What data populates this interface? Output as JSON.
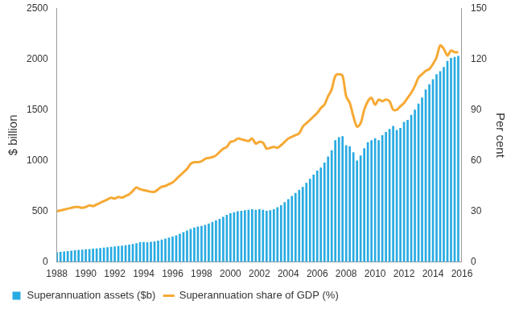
{
  "chart_data": {
    "type": "bar",
    "x": [
      1988,
      1988.25,
      1988.5,
      1988.75,
      1989,
      1989.25,
      1989.5,
      1989.75,
      1990,
      1990.25,
      1990.5,
      1990.75,
      1991,
      1991.25,
      1991.5,
      1991.75,
      1992,
      1992.25,
      1992.5,
      1992.75,
      1993,
      1993.25,
      1993.5,
      1993.75,
      1994,
      1994.25,
      1994.5,
      1994.75,
      1995,
      1995.25,
      1995.5,
      1995.75,
      1996,
      1996.25,
      1996.5,
      1996.75,
      1997,
      1997.25,
      1997.5,
      1997.75,
      1998,
      1998.25,
      1998.5,
      1998.75,
      1999,
      1999.25,
      1999.5,
      1999.75,
      2000,
      2000.25,
      2000.5,
      2000.75,
      2001,
      2001.25,
      2001.5,
      2001.75,
      2002,
      2002.25,
      2002.5,
      2002.75,
      2003,
      2003.25,
      2003.5,
      2003.75,
      2004,
      2004.25,
      2004.5,
      2004.75,
      2005,
      2005.25,
      2005.5,
      2005.75,
      2006,
      2006.25,
      2006.5,
      2006.75,
      2007,
      2007.25,
      2007.5,
      2007.75,
      2008,
      2008.25,
      2008.5,
      2008.75,
      2009,
      2009.25,
      2009.5,
      2009.75,
      2010,
      2010.25,
      2010.5,
      2010.75,
      2011,
      2011.25,
      2011.5,
      2011.75,
      2012,
      2012.25,
      2012.5,
      2012.75,
      2013,
      2013.25,
      2013.5,
      2013.75,
      2014,
      2014.25,
      2014.5,
      2014.75,
      2015,
      2015.25,
      2015.5,
      2015.75
    ],
    "xlim": [
      1988,
      2016
    ],
    "xticks": [
      1988,
      1990,
      1992,
      1994,
      1996,
      1998,
      2000,
      2002,
      2004,
      2006,
      2008,
      2010,
      2012,
      2014,
      2016
    ],
    "y_label": "$ billion",
    "ylim": [
      0,
      2500
    ],
    "yticks": [
      0,
      500,
      1000,
      1500,
      2000,
      2500
    ],
    "y2_label": "Per cent",
    "y2lim": [
      0,
      150
    ],
    "y2ticks": [
      0,
      30,
      60,
      90,
      120,
      150
    ],
    "grid": false,
    "legend": "bottom",
    "series": [
      {
        "name": "Superannuation assets ($b)",
        "type": "bar",
        "color": "#29abe2",
        "values": [
          95,
          100,
          104,
          108,
          112,
          116,
          119,
          122,
          125,
          128,
          131,
          134,
          137,
          141,
          145,
          150,
          154,
          158,
          162,
          166,
          172,
          178,
          186,
          194,
          196,
          195,
          198,
          202,
          210,
          220,
          230,
          240,
          250,
          262,
          278,
          295,
          310,
          325,
          340,
          350,
          355,
          365,
          380,
          395,
          410,
          425,
          445,
          465,
          480,
          490,
          500,
          505,
          510,
          515,
          520,
          515,
          520,
          515,
          505,
          510,
          520,
          540,
          560,
          590,
          620,
          650,
          680,
          710,
          740,
          780,
          820,
          860,
          900,
          930,
          980,
          1040,
          1100,
          1200,
          1230,
          1240,
          1150,
          1140,
          1080,
          1000,
          1050,
          1120,
          1180,
          1200,
          1220,
          1200,
          1250,
          1280,
          1310,
          1340,
          1300,
          1320,
          1380,
          1400,
          1450,
          1500,
          1560,
          1620,
          1700,
          1750,
          1800,
          1850,
          1880,
          1920,
          1980,
          2010,
          2020,
          2030
        ]
      },
      {
        "name": "Superannuation share of GDP (%)",
        "type": "line",
        "axis": "y2",
        "color": "#f6a934",
        "values": [
          30,
          30.5,
          31,
          31.5,
          32,
          32.5,
          32.5,
          32,
          32.5,
          33.5,
          33,
          34,
          35,
          36,
          37,
          38,
          37.5,
          38.5,
          38,
          39,
          40,
          42,
          44,
          43,
          42.5,
          42,
          41.5,
          41.5,
          43,
          44.5,
          45,
          46,
          47,
          49,
          51,
          53,
          55,
          58,
          59,
          59,
          59.5,
          61,
          61.5,
          62,
          63,
          65,
          67,
          68,
          71,
          71.5,
          73,
          72.5,
          72,
          71.5,
          73,
          70,
          71,
          70.5,
          67,
          67.5,
          68,
          67.5,
          69,
          71,
          73,
          74,
          75,
          76,
          80,
          82,
          84,
          86,
          88,
          91,
          93,
          98,
          102,
          110,
          111,
          110,
          98,
          94,
          86,
          80,
          82,
          90,
          95,
          97,
          93,
          96,
          95,
          96,
          95,
          90,
          90,
          92,
          94,
          97,
          100,
          104,
          109,
          111,
          113,
          114,
          117,
          121,
          128,
          126,
          122,
          125,
          124,
          124
        ]
      }
    ]
  }
}
